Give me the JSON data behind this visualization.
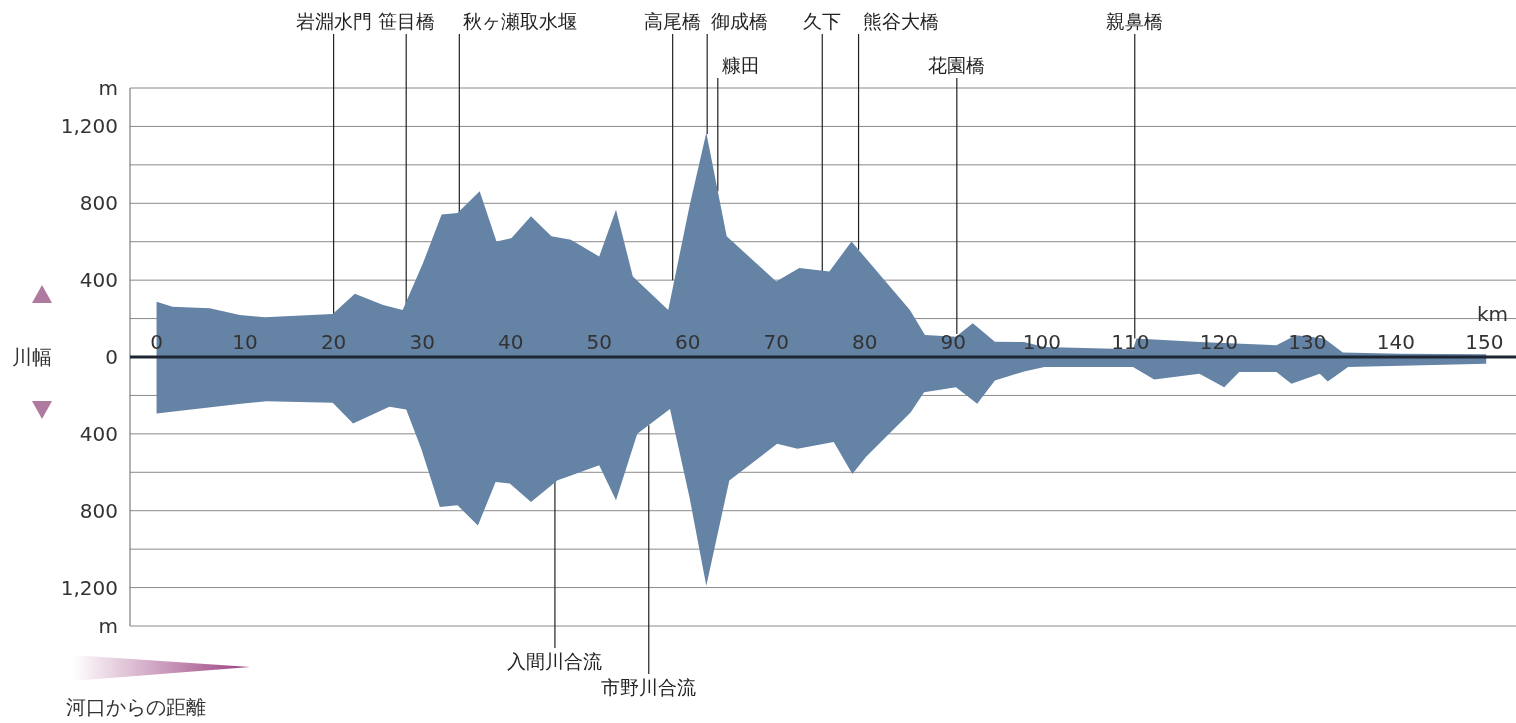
{
  "chart_data": {
    "type": "area",
    "xlabel": "km",
    "ylabel": "川幅",
    "grid": "y",
    "xlim": [
      -3,
      153
    ],
    "xticks": [
      0,
      10,
      20,
      30,
      40,
      50,
      60,
      70,
      80,
      90,
      100,
      110,
      120,
      130,
      140,
      150
    ],
    "ylim": [
      -1400,
      1400
    ],
    "yticks": [
      {
        "value": -1400,
        "label": "m"
      },
      {
        "value": -1200,
        "label": "1,200"
      },
      {
        "value": -1000,
        "label": null
      },
      {
        "value": -800,
        "label": "800"
      },
      {
        "value": -600,
        "label": null
      },
      {
        "value": -400,
        "label": "400"
      },
      {
        "value": -200,
        "label": null
      },
      0,
      {
        "value": 200,
        "label": null
      },
      {
        "value": 400,
        "label": "400"
      },
      {
        "value": 600,
        "label": null
      },
      {
        "value": 800,
        "label": "800"
      },
      {
        "value": 1000,
        "label": null
      },
      {
        "value": 1200,
        "label": "1,200"
      },
      {
        "value": 1400,
        "label": "m"
      }
    ],
    "series": [
      {
        "color": "#6483a5",
        "x": [
          0,
          1.8,
          6,
          9.4,
          12.2,
          19.9,
          22.4,
          25.6,
          27.8,
          30.1,
          32.2,
          34,
          36.5,
          38.4,
          40.1,
          42.3,
          44.6,
          46.8,
          50,
          51.9,
          53.8,
          57.8,
          60.2,
          62.1,
          64.4,
          70,
          72.6,
          76,
          78.5,
          85.1,
          86.8,
          90.3,
          92.2,
          94.7,
          98,
          100.3,
          110.3,
          110.7,
          117.8,
          126.5,
          128.7,
          131.9,
          134,
          140.4,
          150.2
        ],
        "values": [
          288,
          262,
          254,
          219,
          207,
          224,
          329,
          271,
          245,
          489,
          741,
          750,
          862,
          601,
          619,
          732,
          628,
          610,
          523,
          767,
          419,
          245,
          784,
          1167,
          628,
          393,
          463,
          445,
          601,
          245,
          115,
          106,
          176,
          80,
          78,
          52,
          40,
          96,
          78,
          61,
          113,
          96,
          23,
          17,
          14
        ]
      },
      {
        "color": "#6483a5",
        "x": [
          0,
          9.8,
          12.4,
          19.9,
          22.2,
          26.3,
          28.2,
          29.9,
          32,
          34,
          36.3,
          38.3,
          39.9,
          42.3,
          45.3,
          46.9,
          50,
          51.9,
          54.3,
          58,
          60.2,
          62.1,
          64.7,
          70.1,
          72.4,
          76.5,
          78.6,
          80.1,
          85.2,
          86.7,
          90.3,
          92.7,
          94.7,
          98,
          100.3,
          110.3,
          112.7,
          117.8,
          120.6,
          122.3,
          126.5,
          128.2,
          131.4,
          132.3,
          134.6,
          150.2
        ],
        "values": [
          -294,
          -242,
          -230,
          -238,
          -346,
          -259,
          -273,
          -477,
          -781,
          -772,
          -877,
          -650,
          -659,
          -755,
          -642,
          -616,
          -563,
          -746,
          -400,
          -270,
          -730,
          -1190,
          -643,
          -452,
          -478,
          -443,
          -609,
          -522,
          -287,
          -183,
          -157,
          -243,
          -122,
          -75,
          -52,
          -52,
          -117,
          -87,
          -157,
          -78,
          -78,
          -139,
          -87,
          -127,
          -52,
          -35
        ]
      }
    ],
    "annotations": [
      {
        "text": "岩淵水門",
        "x": 20,
        "y": 224
      },
      {
        "text": "笹目橋",
        "x": 28.2,
        "y": 250
      },
      {
        "text": "秋ヶ瀬取水堰",
        "x": 34.2,
        "y": 750
      },
      {
        "text": "入間川合流",
        "x": 45,
        "y": -640
      },
      {
        "text": "市野川合流",
        "x": 55.6,
        "y": -355
      },
      {
        "text": "高尾橋",
        "x": 58.3,
        "y": 400
      },
      {
        "text": "御成橋",
        "x": 62.2,
        "y": 1160
      },
      {
        "text": "糠田",
        "x": 63.4,
        "y": 862
      },
      {
        "text": "久下",
        "x": 75.2,
        "y": 445
      },
      {
        "text": "熊谷大橋",
        "x": 79.3,
        "y": 558
      },
      {
        "text": "花園橋",
        "x": 90.4,
        "y": 120
      },
      {
        "text": "親鼻橋",
        "x": 110.5,
        "y": 96
      },
      "河口からの距離"
    ]
  }
}
